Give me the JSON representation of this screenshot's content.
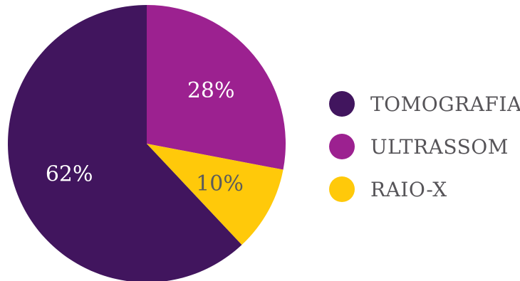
{
  "chart_data": {
    "type": "pie",
    "title": "",
    "legend_position": "right",
    "slices": [
      {
        "label": "TOMOGRAFIA",
        "value": 62,
        "display": "62%",
        "color": "#41155e",
        "label_color": "#ffffff"
      },
      {
        "label": "ULTRASSOM",
        "value": 28,
        "display": "28%",
        "color": "#9c2190",
        "label_color": "#ffffff"
      },
      {
        "label": "RAIO-X",
        "value": 10,
        "display": "10%",
        "color": "#ffc90a",
        "label_color": "#5b5b5b"
      }
    ]
  },
  "legend": {
    "items": [
      {
        "label": "TOMOGRAFIA",
        "color": "#41155e"
      },
      {
        "label": "ULTRASSOM",
        "color": "#9c2190"
      },
      {
        "label": "RAIO-X",
        "color": "#ffc90a"
      }
    ]
  }
}
